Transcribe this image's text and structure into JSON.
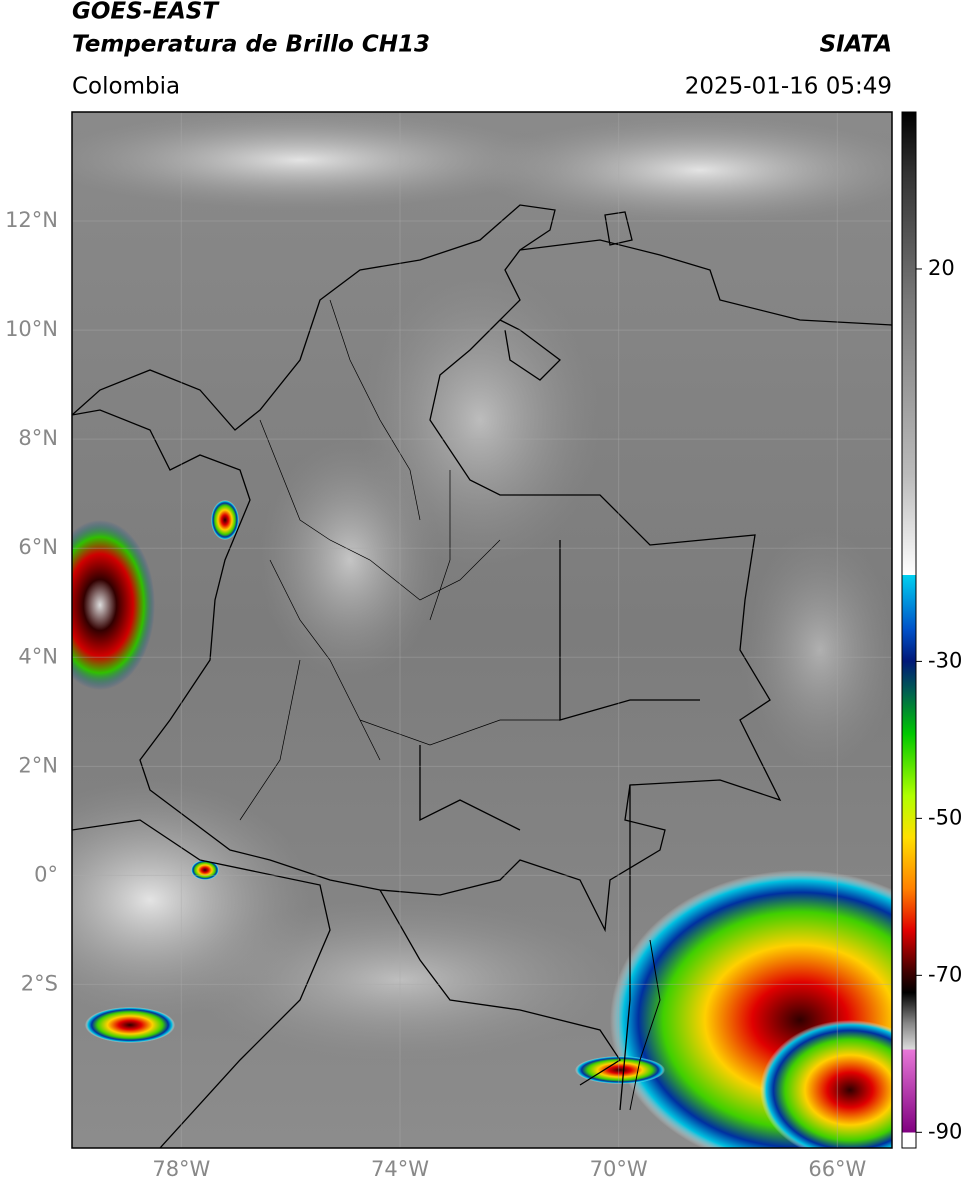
{
  "header": {
    "satellite": "GOES-EAST",
    "product": "Temperatura de Brillo CH13",
    "source": "SIATA",
    "region": "Colombia",
    "datetime": "2025-01-16 05:49"
  },
  "map": {
    "lonlim": [
      -80,
      -65
    ],
    "latlim": [
      -5,
      14
    ],
    "grid": true,
    "lonticks": [
      {
        "value": -78,
        "label": "78°W"
      },
      {
        "value": -74,
        "label": "74°W"
      },
      {
        "value": -70,
        "label": "70°W"
      },
      {
        "value": -66,
        "label": "66°W"
      }
    ],
    "latticks": [
      {
        "value": 12,
        "label": "12°N"
      },
      {
        "value": 10,
        "label": "10°N"
      },
      {
        "value": 8,
        "label": "8°N"
      },
      {
        "value": 6,
        "label": "6°N"
      },
      {
        "value": 4,
        "label": "4°N"
      },
      {
        "value": 2,
        "label": "2°N"
      },
      {
        "value": 0,
        "label": "0°"
      },
      {
        "value": -2,
        "label": "2°S"
      }
    ]
  },
  "colorbar": {
    "lim": [
      -92,
      40
    ],
    "ticks": [
      20,
      -30,
      -50,
      -70,
      -90
    ]
  }
}
